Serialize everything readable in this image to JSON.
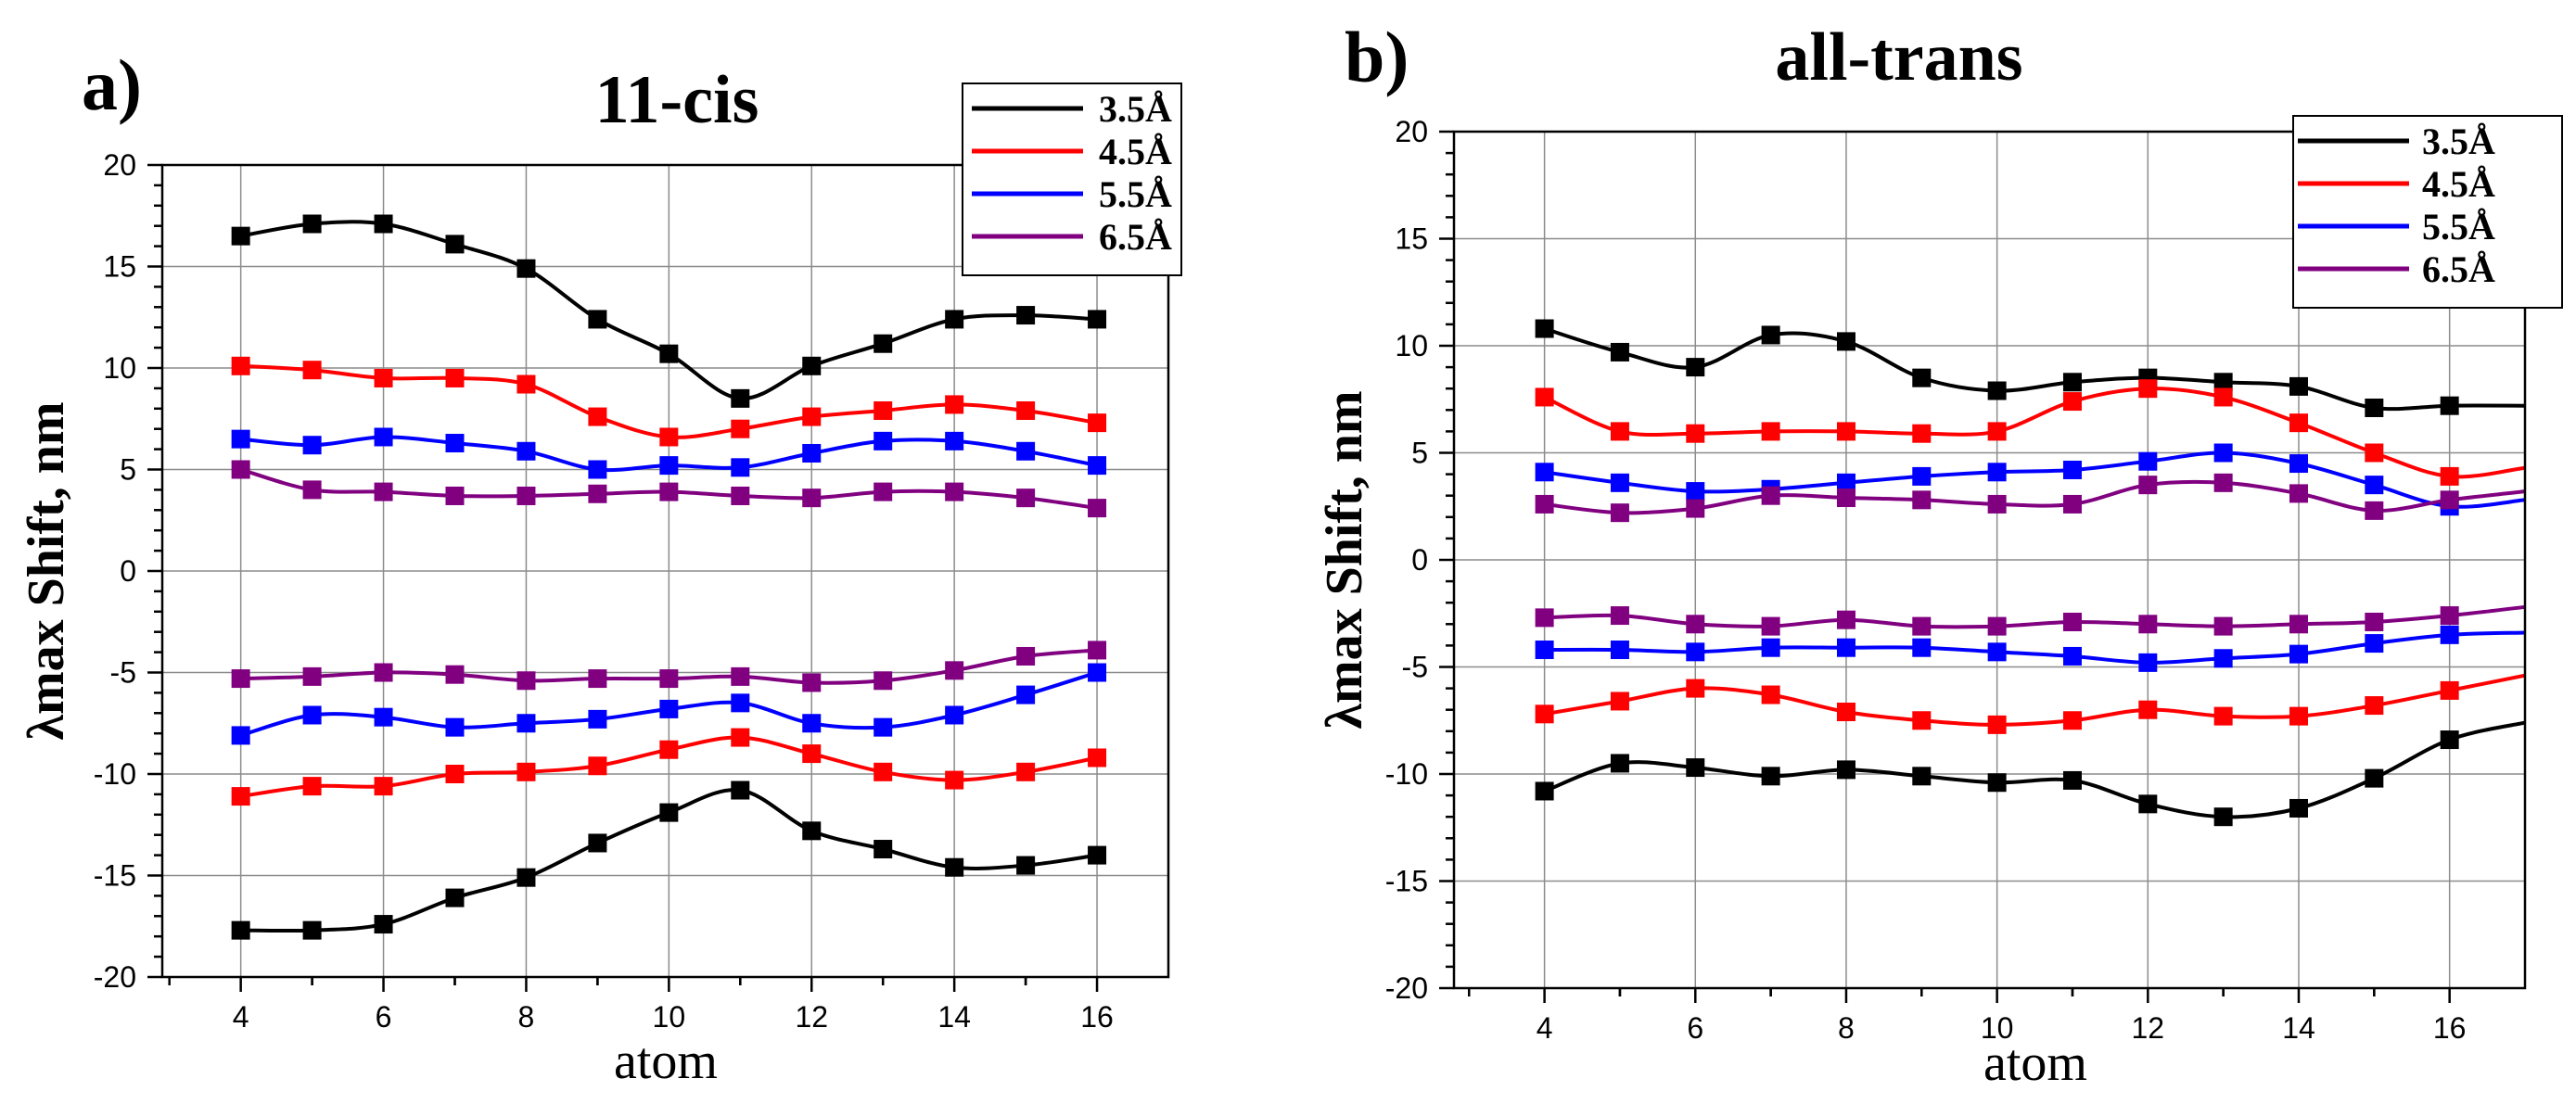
{
  "chart_data": [
    {
      "type": "line",
      "panel_label": "a)",
      "title": "11-cis",
      "xlabel": "atom",
      "ylabel": "λmax Shift, nm",
      "xlim": [
        2.9,
        17.0
      ],
      "ylim": [
        -20,
        20
      ],
      "xticks": [
        "4",
        "6",
        "8",
        "10",
        "12",
        "14",
        "16"
      ],
      "yticks": [
        "20",
        "15",
        "10",
        "5",
        "0",
        "-5",
        "-10",
        "-15",
        "-20"
      ],
      "grid": true,
      "legend_position": "top-right",
      "legend": [
        {
          "name": "3.5Å",
          "color": "#000000"
        },
        {
          "name": "4.5Å",
          "color": "#ff0000"
        },
        {
          "name": "5.5Å",
          "color": "#0000ff"
        },
        {
          "name": "6.5Å",
          "color": "#800080"
        }
      ],
      "x": [
        4,
        5,
        6,
        7,
        8,
        9,
        10,
        11,
        12,
        13,
        14,
        15,
        16
      ],
      "series": [
        {
          "name": "3.5Å",
          "color": "#000000",
          "values": [
            16.5,
            17.1,
            17.1,
            16.1,
            14.9,
            12.4,
            10.7,
            8.5,
            10.1,
            11.2,
            12.4,
            12.6,
            12.4
          ]
        },
        {
          "name": "4.5Å",
          "color": "#ff0000",
          "values": [
            10.1,
            9.9,
            9.5,
            9.5,
            9.2,
            7.6,
            6.6,
            7.0,
            7.6,
            7.9,
            8.2,
            7.9,
            7.3
          ]
        },
        {
          "name": "5.5Å",
          "color": "#0000ff",
          "values": [
            6.5,
            6.2,
            6.6,
            6.3,
            5.9,
            5.0,
            5.2,
            5.1,
            5.8,
            6.4,
            6.4,
            5.9,
            5.2
          ]
        },
        {
          "name": "6.5Å",
          "color": "#800080",
          "values": [
            5.0,
            4.0,
            3.9,
            3.7,
            3.7,
            3.8,
            3.9,
            3.7,
            3.6,
            3.9,
            3.9,
            3.6,
            3.1
          ]
        },
        {
          "name": "6.5Å",
          "color": "#800080",
          "values": [
            -5.3,
            -5.2,
            -5.0,
            -5.1,
            -5.4,
            -5.3,
            -5.3,
            -5.2,
            -5.5,
            -5.4,
            -4.9,
            -4.2,
            -3.9
          ]
        },
        {
          "name": "5.5Å",
          "color": "#0000ff",
          "values": [
            -8.1,
            -7.1,
            -7.2,
            -7.7,
            -7.5,
            -7.3,
            -6.8,
            -6.5,
            -7.5,
            -7.7,
            -7.1,
            -6.1,
            -5.0
          ]
        },
        {
          "name": "4.5Å",
          "color": "#ff0000",
          "values": [
            -11.1,
            -10.6,
            -10.6,
            -10.0,
            -9.9,
            -9.6,
            -8.8,
            -8.2,
            -9.0,
            -9.9,
            -10.3,
            -9.9,
            -9.2
          ]
        },
        {
          "name": "3.5Å",
          "color": "#000000",
          "values": [
            -17.7,
            -17.7,
            -17.4,
            -16.1,
            -15.1,
            -13.4,
            -11.9,
            -10.8,
            -12.8,
            -13.7,
            -14.6,
            -14.5,
            -14.0
          ]
        }
      ]
    },
    {
      "type": "line",
      "panel_label": "b)",
      "title": "all-trans",
      "xlabel": "atom",
      "ylabel": "λmax Shift, nm",
      "xlim": [
        2.8,
        17.0
      ],
      "ylim": [
        -20,
        20
      ],
      "xticks": [
        "4",
        "6",
        "8",
        "10",
        "12",
        "14",
        "16"
      ],
      "yticks": [
        "20",
        "15",
        "10",
        "5",
        "0",
        "-5",
        "-10",
        "-15",
        "-20"
      ],
      "grid": true,
      "legend_position": "top-right",
      "legend": [
        {
          "name": "3.5Å",
          "color": "#000000"
        },
        {
          "name": "4.5Å",
          "color": "#ff0000"
        },
        {
          "name": "5.5Å",
          "color": "#0000ff"
        },
        {
          "name": "6.5Å",
          "color": "#800080"
        }
      ],
      "x": [
        4,
        5,
        6,
        7,
        8,
        9,
        10,
        11,
        12,
        13,
        14,
        15,
        16
      ],
      "series": [
        {
          "name": "3.5Å",
          "color": "#000000",
          "values": [
            10.8,
            9.7,
            9.0,
            10.5,
            10.2,
            8.5,
            7.9,
            8.3,
            8.5,
            8.3,
            8.1,
            7.1,
            7.2
          ],
          "tail_x": 17.0,
          "tail_value": 7.2
        },
        {
          "name": "4.5Å",
          "color": "#ff0000",
          "values": [
            7.6,
            6.0,
            5.9,
            6.0,
            6.0,
            5.9,
            6.0,
            7.4,
            8.0,
            7.6,
            6.4,
            5.0,
            3.9
          ],
          "tail_x": 17.0,
          "tail_value": 4.3
        },
        {
          "name": "5.5Å",
          "color": "#0000ff",
          "values": [
            4.1,
            3.6,
            3.2,
            3.3,
            3.6,
            3.9,
            4.1,
            4.2,
            4.6,
            5.0,
            4.5,
            3.5,
            2.5
          ],
          "tail_x": 17.0,
          "tail_value": 2.8
        },
        {
          "name": "6.5Å",
          "color": "#800080",
          "values": [
            2.6,
            2.2,
            2.4,
            3.0,
            2.9,
            2.8,
            2.6,
            2.6,
            3.5,
            3.6,
            3.1,
            2.3,
            2.8
          ],
          "tail_x": 17.0,
          "tail_value": 3.2
        },
        {
          "name": "6.5Å",
          "color": "#800080",
          "values": [
            -2.7,
            -2.6,
            -3.0,
            -3.1,
            -2.8,
            -3.1,
            -3.1,
            -2.9,
            -3.0,
            -3.1,
            -3.0,
            -2.9,
            -2.6
          ],
          "tail_x": 17.0,
          "tail_value": -2.2
        },
        {
          "name": "5.5Å",
          "color": "#0000ff",
          "values": [
            -4.2,
            -4.2,
            -4.3,
            -4.1,
            -4.1,
            -4.1,
            -4.3,
            -4.5,
            -4.8,
            -4.6,
            -4.4,
            -3.9,
            -3.5
          ],
          "tail_x": 17.0,
          "tail_value": -3.4
        },
        {
          "name": "4.5Å",
          "color": "#ff0000",
          "values": [
            -7.2,
            -6.6,
            -6.0,
            -6.3,
            -7.1,
            -7.5,
            -7.7,
            -7.5,
            -7.0,
            -7.3,
            -7.3,
            -6.8,
            -6.1
          ],
          "tail_x": 17.0,
          "tail_value": -5.4
        },
        {
          "name": "3.5Å",
          "color": "#000000",
          "values": [
            -10.8,
            -9.5,
            -9.7,
            -10.1,
            -9.8,
            -10.1,
            -10.4,
            -10.3,
            -11.4,
            -12.0,
            -11.6,
            -10.2,
            -8.4
          ],
          "tail_x": 17.0,
          "tail_value": -7.6
        }
      ]
    }
  ]
}
